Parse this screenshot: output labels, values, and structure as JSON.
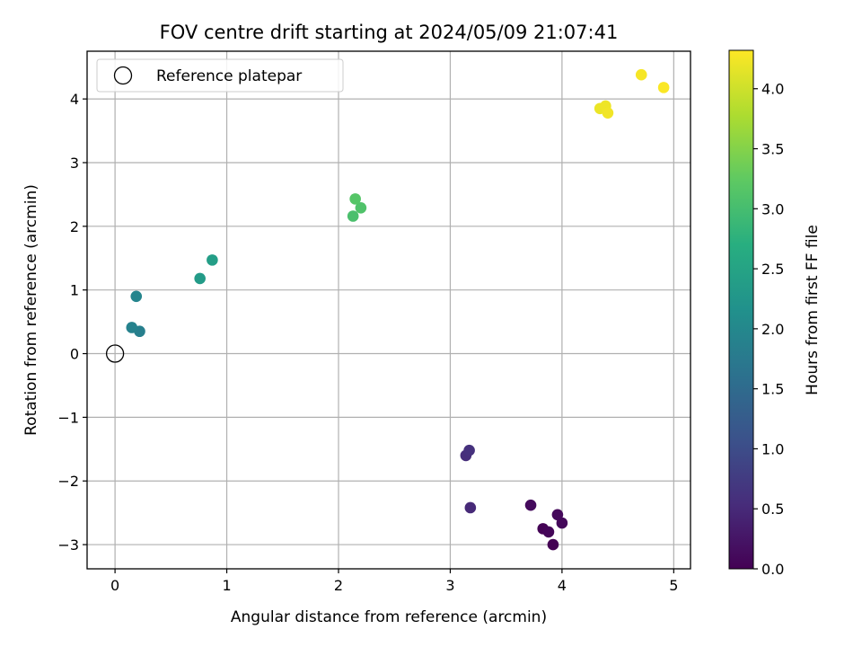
{
  "chart_data": {
    "type": "scatter",
    "title": "FOV centre drift starting at 2024/05/09 21:07:41",
    "xlabel": "Angular distance from reference (arcmin)",
    "ylabel": "Rotation from reference (arcmin)",
    "xlim": [
      -0.25,
      5.15
    ],
    "ylim": [
      -3.38,
      4.75
    ],
    "xticks": [
      0,
      1,
      2,
      3,
      4,
      5
    ],
    "yticks": [
      -3,
      -2,
      -1,
      0,
      1,
      2,
      3,
      4
    ],
    "xtick_labels": [
      "0",
      "1",
      "2",
      "3",
      "4",
      "5"
    ],
    "ytick_labels": [
      "−3",
      "−2",
      "−1",
      "0",
      "1",
      "2",
      "3",
      "4"
    ],
    "grid": true,
    "colormap": "viridis",
    "colorbar": {
      "label": "Hours from first FF file",
      "range": [
        0,
        4.32
      ],
      "ticks": [
        0,
        0.5,
        1,
        1.5,
        2,
        2.5,
        3,
        3.5,
        4
      ],
      "tick_labels": [
        "0.0",
        "0.5",
        "1.0",
        "1.5",
        "2.0",
        "2.5",
        "3.0",
        "3.5",
        "4.0"
      ]
    },
    "legend": {
      "placement": "upper-left",
      "entries": [
        "Reference platepar"
      ]
    },
    "reference_point": {
      "x": 0,
      "y": 0,
      "label": "Reference platepar"
    },
    "points": [
      {
        "x": 3.92,
        "y": -3.0,
        "hours": 0.0
      },
      {
        "x": 3.83,
        "y": -2.75,
        "hours": 0.02
      },
      {
        "x": 3.88,
        "y": -2.8,
        "hours": 0.05
      },
      {
        "x": 4.0,
        "y": -2.66,
        "hours": 0.08
      },
      {
        "x": 3.96,
        "y": -2.53,
        "hours": 0.1
      },
      {
        "x": 3.72,
        "y": -2.38,
        "hours": 0.12
      },
      {
        "x": 3.18,
        "y": -2.42,
        "hours": 0.5
      },
      {
        "x": 3.14,
        "y": -1.6,
        "hours": 0.55
      },
      {
        "x": 3.17,
        "y": -1.52,
        "hours": 0.6
      },
      {
        "x": 0.22,
        "y": 0.35,
        "hours": 1.85
      },
      {
        "x": 0.15,
        "y": 0.41,
        "hours": 1.9
      },
      {
        "x": 0.19,
        "y": 0.9,
        "hours": 1.95
      },
      {
        "x": 0.76,
        "y": 1.18,
        "hours": 2.35
      },
      {
        "x": 0.87,
        "y": 1.47,
        "hours": 2.4
      },
      {
        "x": 2.13,
        "y": 2.16,
        "hours": 3.05
      },
      {
        "x": 2.2,
        "y": 2.29,
        "hours": 3.1
      },
      {
        "x": 2.15,
        "y": 2.43,
        "hours": 3.15
      },
      {
        "x": 4.34,
        "y": 3.85,
        "hours": 4.2
      },
      {
        "x": 4.39,
        "y": 3.89,
        "hours": 4.22
      },
      {
        "x": 4.41,
        "y": 3.78,
        "hours": 4.24
      },
      {
        "x": 4.71,
        "y": 4.38,
        "hours": 4.27
      },
      {
        "x": 4.91,
        "y": 4.18,
        "hours": 4.3
      }
    ]
  }
}
